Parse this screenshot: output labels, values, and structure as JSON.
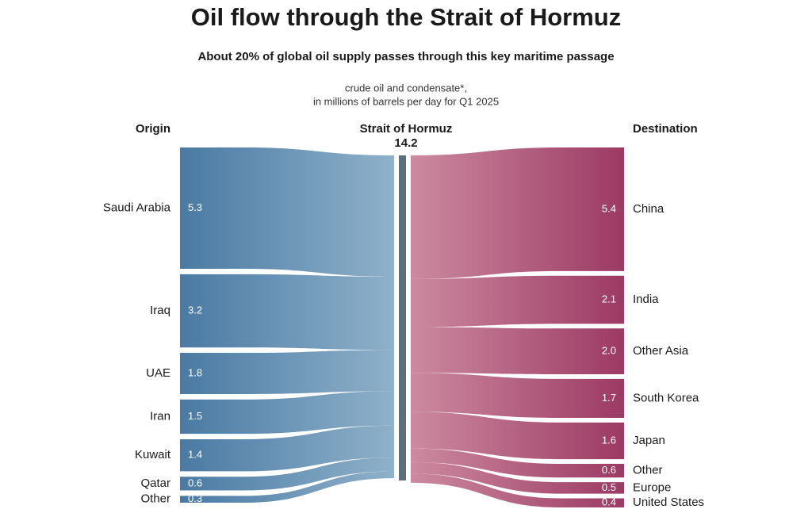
{
  "chart_data": {
    "type": "sankey",
    "title": "Oil flow through the Strait of Hormuz",
    "subtitle": "About 20% of global oil supply passes through this key maritime passage",
    "note": [
      "crude oil and condensate*,",
      "in millions of barrels per day for Q1 2025"
    ],
    "origin_label": "Origin",
    "destination_label": "Destination",
    "hub": {
      "name": "Strait of Hormuz",
      "value": 14.2,
      "color": "#5d6f7a"
    },
    "sources": {
      "categories": [
        "Saudi Arabia",
        "Iraq",
        "UAE",
        "Iran",
        "Kuwait",
        "Qatar",
        "Other"
      ],
      "values": [
        5.3,
        3.2,
        1.8,
        1.5,
        1.4,
        0.6,
        0.3
      ],
      "value_labels": [
        "5.3",
        "3.2",
        "1.8",
        "1.5",
        "1.4",
        "0.6",
        "0.3"
      ],
      "color": "#4a7aa3",
      "color_end": "#8fb1ca"
    },
    "targets": {
      "categories": [
        "China",
        "India",
        "Other Asia",
        "South Korea",
        "Japan",
        "Other",
        "Europe",
        "United States"
      ],
      "values": [
        5.4,
        2.1,
        2.0,
        1.7,
        1.6,
        0.6,
        0.5,
        0.4
      ],
      "value_labels": [
        "5.4",
        "2.1",
        "2.0",
        "1.7",
        "1.6",
        "0.6",
        "0.5",
        "0.4"
      ],
      "color": "#9c3a63",
      "color_end": "#cc8aa0"
    }
  }
}
